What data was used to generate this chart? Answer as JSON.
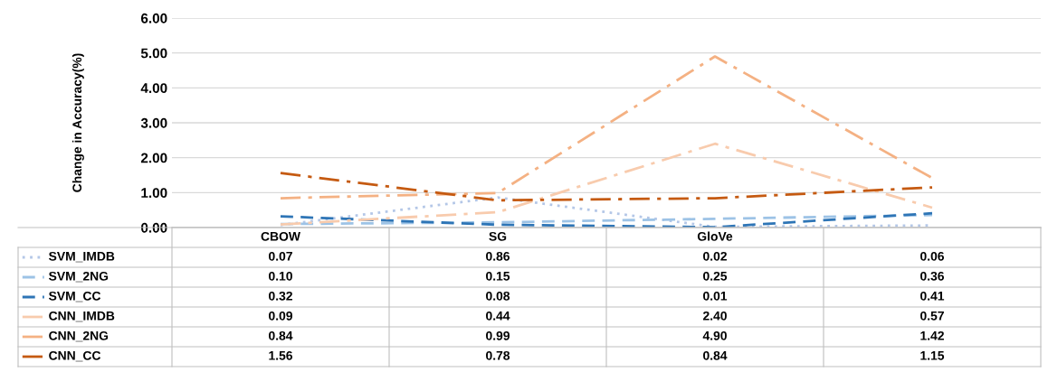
{
  "chart_data": {
    "type": "line",
    "ylabel": "Change in Accuracy(%)",
    "categories": [
      "CBOW",
      "SG",
      "GloVe",
      null
    ],
    "series": [
      {
        "name": "SVM_IMDB",
        "color": "#b4c7e7",
        "line_style": "dotted",
        "values": [
          0.07,
          0.86,
          0.02,
          0.06
        ],
        "value_labels": [
          "0.07",
          "0.86",
          "0.02",
          "0.06"
        ]
      },
      {
        "name": "SVM_2NG",
        "color": "#9dc3e6",
        "line_style": "dashed",
        "values": [
          0.1,
          0.15,
          0.25,
          0.36
        ],
        "value_labels": [
          "0.10",
          "0.15",
          "0.25",
          "0.36"
        ]
      },
      {
        "name": "SVM_CC",
        "color": "#2e75b6",
        "line_style": "dashed",
        "values": [
          0.32,
          0.08,
          0.01,
          0.41
        ],
        "value_labels": [
          "0.32",
          "0.08",
          "0.01",
          "0.41"
        ]
      },
      {
        "name": "CNN_IMDB",
        "color": "#f8cbad",
        "line_style": "dashdot",
        "values": [
          0.09,
          0.44,
          2.4,
          0.57
        ],
        "value_labels": [
          "0.09",
          "0.44",
          "2.40",
          "0.57"
        ]
      },
      {
        "name": "CNN_2NG",
        "color": "#f4b183",
        "line_style": "dashdot",
        "values": [
          0.84,
          0.99,
          4.9,
          1.42
        ],
        "value_labels": [
          "0.84",
          "0.99",
          "4.90",
          "1.42"
        ]
      },
      {
        "name": "CNN_CC",
        "color": "#c55a11",
        "line_style": "dashdot",
        "values": [
          1.56,
          0.78,
          0.84,
          1.15
        ],
        "value_labels": [
          "1.56",
          "0.78",
          "0.84",
          "1.15"
        ]
      }
    ],
    "ylim": [
      0,
      6
    ],
    "yticks": [
      {
        "value": 0,
        "label": "0.00"
      },
      {
        "value": 1,
        "label": "1.00"
      },
      {
        "value": 2,
        "label": "2.00"
      },
      {
        "value": 3,
        "label": "3.00"
      },
      {
        "value": 4,
        "label": "4.00"
      },
      {
        "value": 5,
        "label": "5.00"
      },
      {
        "value": 6,
        "label": "6.00"
      }
    ],
    "grid": "y",
    "legend": "bottom",
    "marker": "none"
  }
}
